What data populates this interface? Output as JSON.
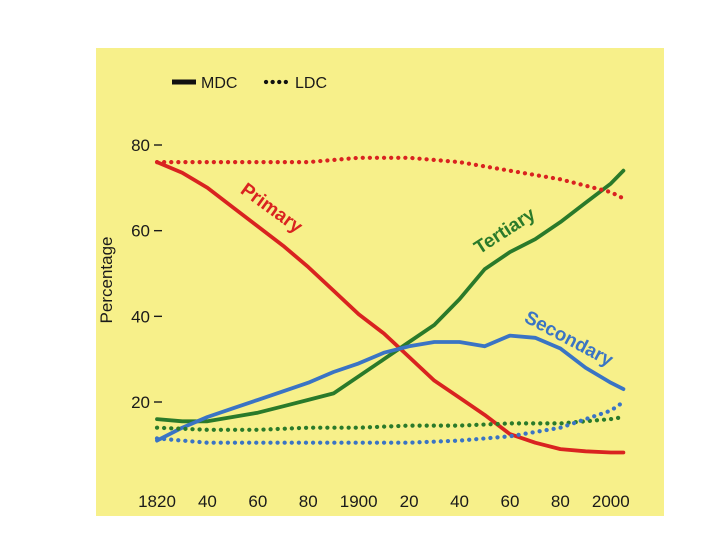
{
  "chart_data": {
    "type": "line",
    "title": "",
    "xlabel": "",
    "ylabel": "Percentage",
    "xlim": [
      1820,
      2010
    ],
    "ylim": [
      0,
      90
    ],
    "x_ticks": [
      {
        "value": 1820,
        "label": "1820"
      },
      {
        "value": 1840,
        "label": "40"
      },
      {
        "value": 1860,
        "label": "60"
      },
      {
        "value": 1880,
        "label": "80"
      },
      {
        "value": 1900,
        "label": "1900"
      },
      {
        "value": 1920,
        "label": "20"
      },
      {
        "value": 1940,
        "label": "40"
      },
      {
        "value": 1960,
        "label": "60"
      },
      {
        "value": 1980,
        "label": "80"
      },
      {
        "value": 2000,
        "label": "2000"
      }
    ],
    "y_ticks": [
      {
        "value": 20,
        "label": "20"
      },
      {
        "value": 40,
        "label": "40"
      },
      {
        "value": 60,
        "label": "60"
      },
      {
        "value": 80,
        "label": "80"
      }
    ],
    "legend": {
      "position": "top-left",
      "entries": [
        {
          "label": "MDC",
          "style": "solid"
        },
        {
          "label": "LDC",
          "style": "dotted"
        }
      ]
    },
    "colors": {
      "primary": "#d92320",
      "secondary": "#3a74c4",
      "tertiary": "#2a7a2a",
      "background": "#f7f08a"
    },
    "series": [
      {
        "name": "Primary",
        "group": "MDC",
        "sector": "primary",
        "style": "solid",
        "label": "Primary",
        "x": [
          1820,
          1830,
          1840,
          1850,
          1860,
          1870,
          1880,
          1890,
          1900,
          1910,
          1920,
          1930,
          1940,
          1950,
          1960,
          1970,
          1980,
          1990,
          2000,
          2005
        ],
        "y": [
          76,
          73.5,
          70,
          65.5,
          61,
          56.5,
          51.5,
          46,
          40.5,
          36,
          30.5,
          25,
          21,
          17,
          12.5,
          10.5,
          9,
          8.5,
          8.2,
          8.2
        ]
      },
      {
        "name": "Tertiary",
        "group": "MDC",
        "sector": "tertiary",
        "style": "solid",
        "label": "Tertiary",
        "x": [
          1820,
          1830,
          1840,
          1850,
          1860,
          1870,
          1880,
          1890,
          1900,
          1910,
          1920,
          1930,
          1940,
          1950,
          1960,
          1970,
          1980,
          1990,
          2000,
          2005
        ],
        "y": [
          16,
          15.5,
          15.5,
          16.5,
          17.5,
          19,
          20.5,
          22,
          26,
          30,
          34,
          38,
          44,
          51,
          55,
          58,
          62,
          66.5,
          71,
          74
        ]
      },
      {
        "name": "Secondary",
        "group": "MDC",
        "sector": "secondary",
        "style": "solid",
        "label": "Secondary",
        "x": [
          1820,
          1830,
          1840,
          1850,
          1860,
          1870,
          1880,
          1890,
          1900,
          1910,
          1920,
          1930,
          1940,
          1950,
          1960,
          1970,
          1980,
          1990,
          2000,
          2005
        ],
        "y": [
          11,
          14,
          16.5,
          18.5,
          20.5,
          22.5,
          24.5,
          27,
          29,
          31.5,
          33,
          34,
          34,
          33,
          35.5,
          35,
          32.5,
          28,
          24.5,
          23
        ]
      },
      {
        "name": "Primary",
        "group": "LDC",
        "sector": "primary",
        "style": "dotted",
        "x": [
          1820,
          1840,
          1860,
          1880,
          1900,
          1920,
          1940,
          1960,
          1980,
          2000,
          2005
        ],
        "y": [
          76,
          76,
          76,
          76,
          77,
          77,
          76,
          74,
          72,
          69,
          67.5
        ]
      },
      {
        "name": "Tertiary",
        "group": "LDC",
        "sector": "tertiary",
        "style": "dotted",
        "x": [
          1820,
          1840,
          1860,
          1880,
          1900,
          1920,
          1940,
          1960,
          1980,
          2000,
          2005
        ],
        "y": [
          14,
          13.5,
          13.5,
          14,
          14,
          14.5,
          14.5,
          15,
          15,
          16,
          16.5
        ]
      },
      {
        "name": "Secondary",
        "group": "LDC",
        "sector": "secondary",
        "style": "dotted",
        "x": [
          1820,
          1840,
          1860,
          1880,
          1900,
          1920,
          1940,
          1960,
          1980,
          2000,
          2005
        ],
        "y": [
          11.5,
          10.5,
          10.5,
          10.5,
          10.5,
          10.5,
          11,
          12,
          14,
          18,
          20
        ]
      }
    ]
  }
}
